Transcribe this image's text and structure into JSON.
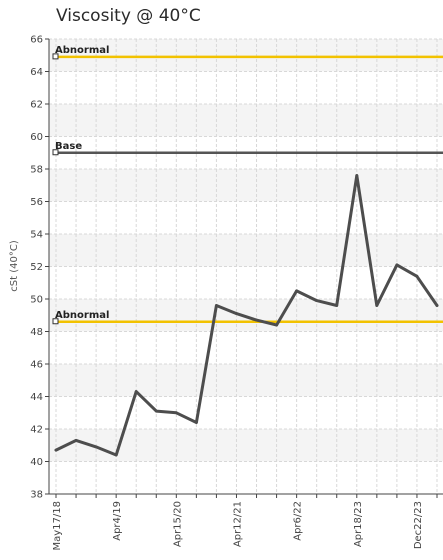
{
  "chart_data": {
    "type": "line",
    "title": "Viscosity @ 40°C",
    "ylabel": "cSt (40°C)",
    "xlabel": "",
    "ylim": [
      38,
      66
    ],
    "yticks": [
      38,
      40,
      42,
      44,
      46,
      48,
      50,
      52,
      54,
      56,
      58,
      60,
      62,
      64,
      66
    ],
    "grid": true,
    "xticks": [
      {
        "label": "May17/18",
        "index": 0
      },
      {
        "label": "Apr4/19",
        "index": 3
      },
      {
        "label": "Apr15/20",
        "index": 6
      },
      {
        "label": "Apr12/21",
        "index": 9
      },
      {
        "label": "Apr6/22",
        "index": 12
      },
      {
        "label": "Apr18/23",
        "index": 15
      },
      {
        "label": "Dec22/23",
        "index": 18
      }
    ],
    "series": [
      {
        "values": [
          40.7,
          41.3,
          40.9,
          40.4,
          44.3,
          43.1,
          43.0,
          42.4,
          49.6,
          49.1,
          48.7,
          48.4,
          50.5,
          49.9,
          49.6,
          57.6,
          49.6,
          52.1,
          51.4,
          49.6
        ],
        "color": "#4d4d4d"
      }
    ],
    "reference_lines": [
      {
        "label": "Abnormal",
        "value": 64.9,
        "color": "#f2c200"
      },
      {
        "label": "Base",
        "value": 59.0,
        "color": "#555555"
      },
      {
        "label": "Abnormal",
        "value": 48.6,
        "color": "#f2c200"
      }
    ]
  }
}
